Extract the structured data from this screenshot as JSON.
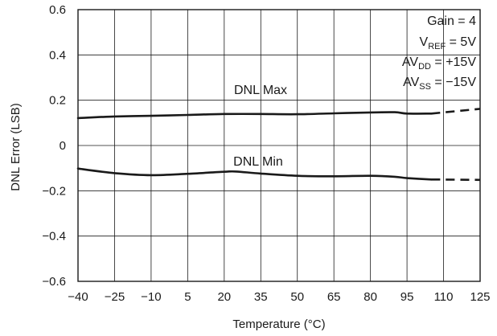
{
  "chart_data": {
    "type": "line",
    "xlabel": "Temperature (°C)",
    "ylabel": "DNL Error (LSB)",
    "xlim": [
      -40,
      125
    ],
    "ylim": [
      -0.6,
      0.6
    ],
    "x_ticks": [
      -40,
      -25,
      -10,
      5,
      20,
      35,
      50,
      65,
      80,
      95,
      110,
      125
    ],
    "y_ticks": [
      0.6,
      0.4,
      0.2,
      0,
      -0.2,
      -0.4,
      -0.6
    ],
    "x_tick_labels": [
      "−40",
      "−25",
      "−10",
      "5",
      "20",
      "35",
      "50",
      "65",
      "80",
      "95",
      "110",
      "125"
    ],
    "y_tick_labels": [
      "0.6",
      "0.4",
      "0.2",
      "0",
      "−0.2",
      "−0.4",
      "−0.6"
    ],
    "grid": true,
    "series": [
      {
        "name": "DNL Max",
        "x": [
          -40,
          -25,
          -10,
          5,
          20,
          35,
          50,
          65,
          80,
          90,
          95,
          105
        ],
        "y": [
          0.121,
          0.128,
          0.131,
          0.135,
          0.139,
          0.139,
          0.138,
          0.142,
          0.146,
          0.147,
          0.141,
          0.141
        ],
        "dashed_x": [
          105,
          125
        ],
        "dashed_y": [
          0.141,
          0.162
        ]
      },
      {
        "name": "DNL Min",
        "x": [
          -40,
          -25,
          -10,
          5,
          20,
          25,
          35,
          50,
          65,
          80,
          90,
          95,
          105
        ],
        "y": [
          -0.102,
          -0.122,
          -0.131,
          -0.125,
          -0.116,
          -0.115,
          -0.124,
          -0.134,
          -0.136,
          -0.134,
          -0.138,
          -0.144,
          -0.15
        ],
        "dashed_x": [
          105,
          125
        ],
        "dashed_y": [
          -0.15,
          -0.152
        ]
      }
    ],
    "annotations": [
      {
        "text": "Gain = 4"
      },
      {
        "base": "V",
        "sub": "REF",
        "rest": " = 5V"
      },
      {
        "base": "AV",
        "sub": "DD",
        "rest": " = +15V"
      },
      {
        "base": "AV",
        "sub": "SS",
        "rest": " = −15V"
      }
    ]
  }
}
